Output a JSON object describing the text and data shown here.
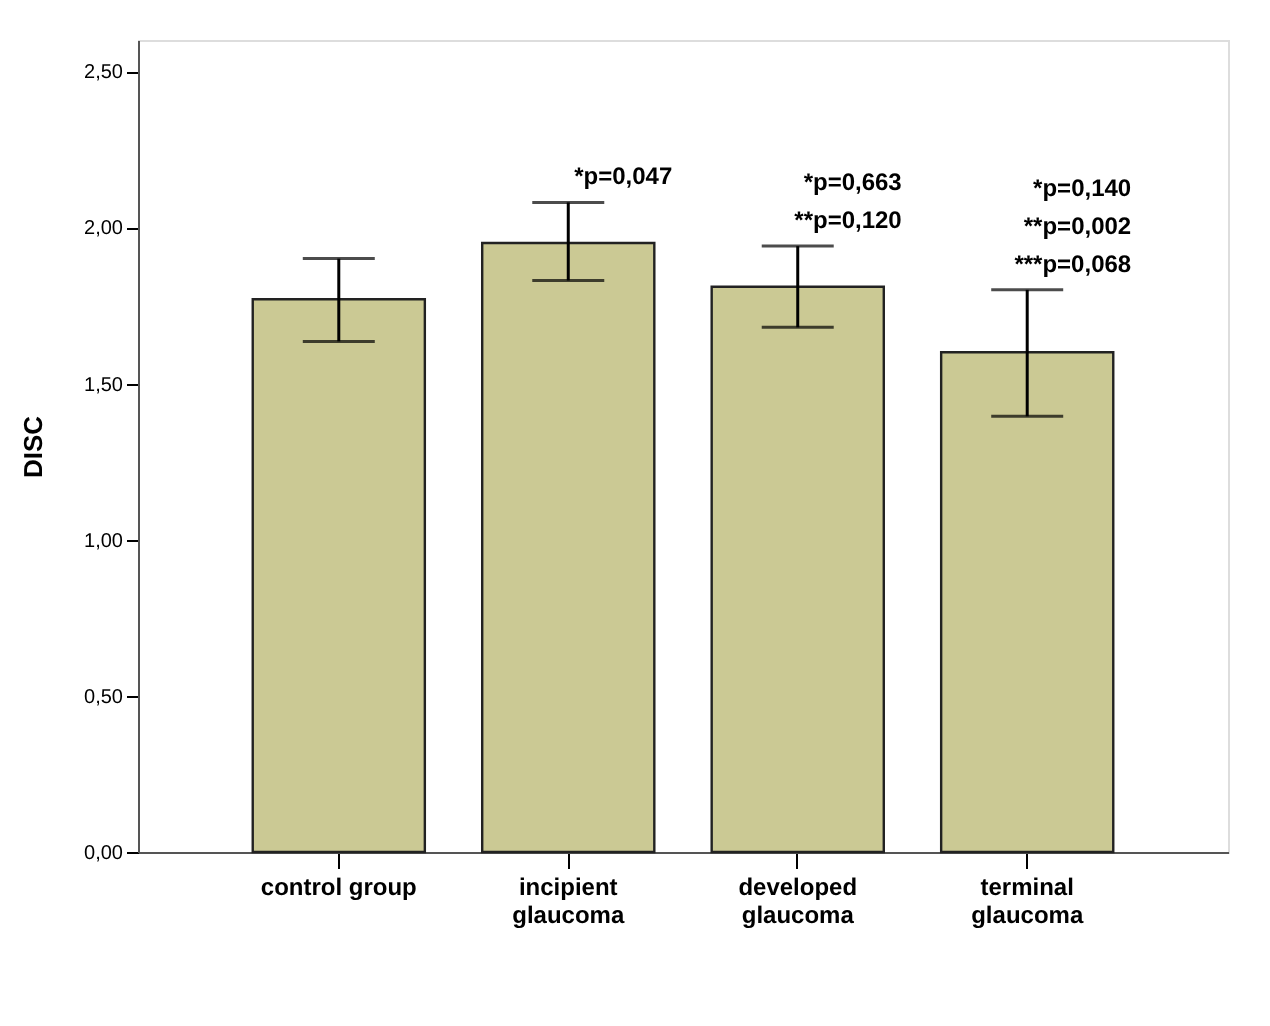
{
  "chart_data": {
    "type": "bar",
    "ylabel": "DISC",
    "categories": [
      "control group",
      "incipient\nglaucoma",
      "developed\nglaucoma",
      "terminal\nglaucoma"
    ],
    "values": [
      1.77,
      1.95,
      1.81,
      1.6
    ],
    "errors": [
      [
        1.635,
        1.9
      ],
      [
        1.83,
        2.08
      ],
      [
        1.68,
        1.94
      ],
      [
        1.395,
        1.8
      ]
    ],
    "color": "#cbc994",
    "ylim": [
      0,
      2.6
    ],
    "yticks": [
      {
        "value": 0,
        "label": "0,00"
      },
      {
        "value": 0.5,
        "label": "0,50"
      },
      {
        "value": 1.0,
        "label": "1,00"
      },
      {
        "value": 1.5,
        "label": "1,50"
      },
      {
        "value": 2.0,
        "label": "2,00"
      },
      {
        "value": 2.5,
        "label": "2,50"
      }
    ],
    "grid": false,
    "annotations": [
      "*p=0,047",
      "*p=0,663",
      "**p=0,120",
      "*p=0,140",
      "**p=0,002",
      "***p=0,068"
    ]
  }
}
